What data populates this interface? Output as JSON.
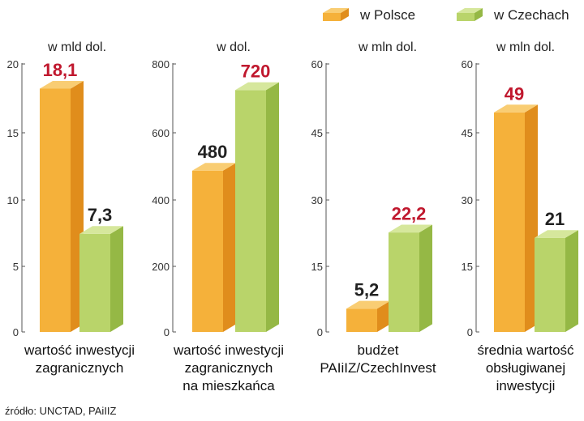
{
  "legend": {
    "items": [
      {
        "label": "w Polsce",
        "color": "#f0a028"
      },
      {
        "label": "w Czechach",
        "color": "#a9c95a"
      }
    ]
  },
  "source": "źródło: UNCTAD, PAiIIZ",
  "colors": {
    "orange_front": "#f5b13a",
    "orange_side": "#e08d1c",
    "orange_top": "#f9cd73",
    "green_front": "#b9d46a",
    "green_side": "#95b845",
    "green_top": "#d6e79c",
    "highlight_label": "#c0182e",
    "normal_label": "#222222"
  },
  "chart_data": [
    {
      "type": "bar",
      "unit": "w mld dol.",
      "category_label": [
        "wartość inwestycji",
        "zagranicznych"
      ],
      "series": [
        {
          "name": "w Polsce",
          "value": 18.1,
          "label": "18,1",
          "highlight": true
        },
        {
          "name": "w Czechach",
          "value": 7.3,
          "label": "7,3",
          "highlight": false
        }
      ],
      "ylim": [
        0,
        20
      ],
      "ticks": [
        "0",
        "5",
        "10",
        "15",
        "20"
      ]
    },
    {
      "type": "bar",
      "unit": "w dol.",
      "category_label": [
        "wartość inwestycji",
        "zagranicznych",
        "na mieszkańca"
      ],
      "series": [
        {
          "name": "w Polsce",
          "value": 480,
          "label": "480",
          "highlight": false
        },
        {
          "name": "w Czechach",
          "value": 720,
          "label": "720",
          "highlight": true
        }
      ],
      "ylim": [
        0,
        800
      ],
      "ticks": [
        "0",
        "200",
        "400",
        "600",
        "800"
      ]
    },
    {
      "type": "bar",
      "unit": "w mln dol.",
      "category_label": [
        "budżet",
        "PAIiIZ/CzechInvest"
      ],
      "series": [
        {
          "name": "w Polsce",
          "value": 5.2,
          "label": "5,2",
          "highlight": false
        },
        {
          "name": "w Czechach",
          "value": 22.2,
          "label": "22,2",
          "highlight": true
        }
      ],
      "ylim": [
        0,
        60
      ],
      "ticks": [
        "0",
        "15",
        "30",
        "45",
        "60"
      ]
    },
    {
      "type": "bar",
      "unit": "w mln dol.",
      "category_label": [
        "średnia wartość",
        "obsługiwanej",
        "inwestycji"
      ],
      "series": [
        {
          "name": "w Polsce",
          "value": 49,
          "label": "49",
          "highlight": true
        },
        {
          "name": "w Czechach",
          "value": 21,
          "label": "21",
          "highlight": false
        }
      ],
      "ylim": [
        0,
        60
      ],
      "ticks": [
        "0",
        "15",
        "30",
        "45",
        "60"
      ]
    }
  ]
}
